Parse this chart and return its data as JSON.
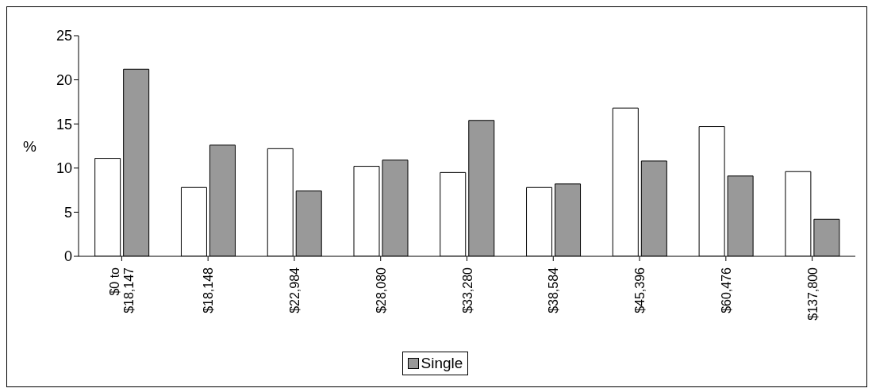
{
  "chart_data": {
    "type": "bar",
    "ylabel": "%",
    "categories": [
      "$0 to $18,147",
      "$18,148",
      "$22,984",
      "$28,080",
      "$33,280",
      "$38,584",
      "$45,396",
      "$60,476",
      "$137,800"
    ],
    "series": [
      {
        "color": "#ffffff",
        "values": [
          11.1,
          7.8,
          12.2,
          10.2,
          9.5,
          7.8,
          16.8,
          14.7,
          9.6
        ]
      },
      {
        "name": "Single",
        "color": "#999999",
        "values": [
          21.2,
          12.6,
          7.4,
          10.9,
          15.4,
          8.2,
          10.8,
          9.1,
          4.2
        ]
      }
    ],
    "ylim": [
      0,
      25
    ],
    "yticks": [
      0,
      5,
      10,
      15,
      20,
      25
    ],
    "grid": false,
    "legend": "bottom"
  }
}
